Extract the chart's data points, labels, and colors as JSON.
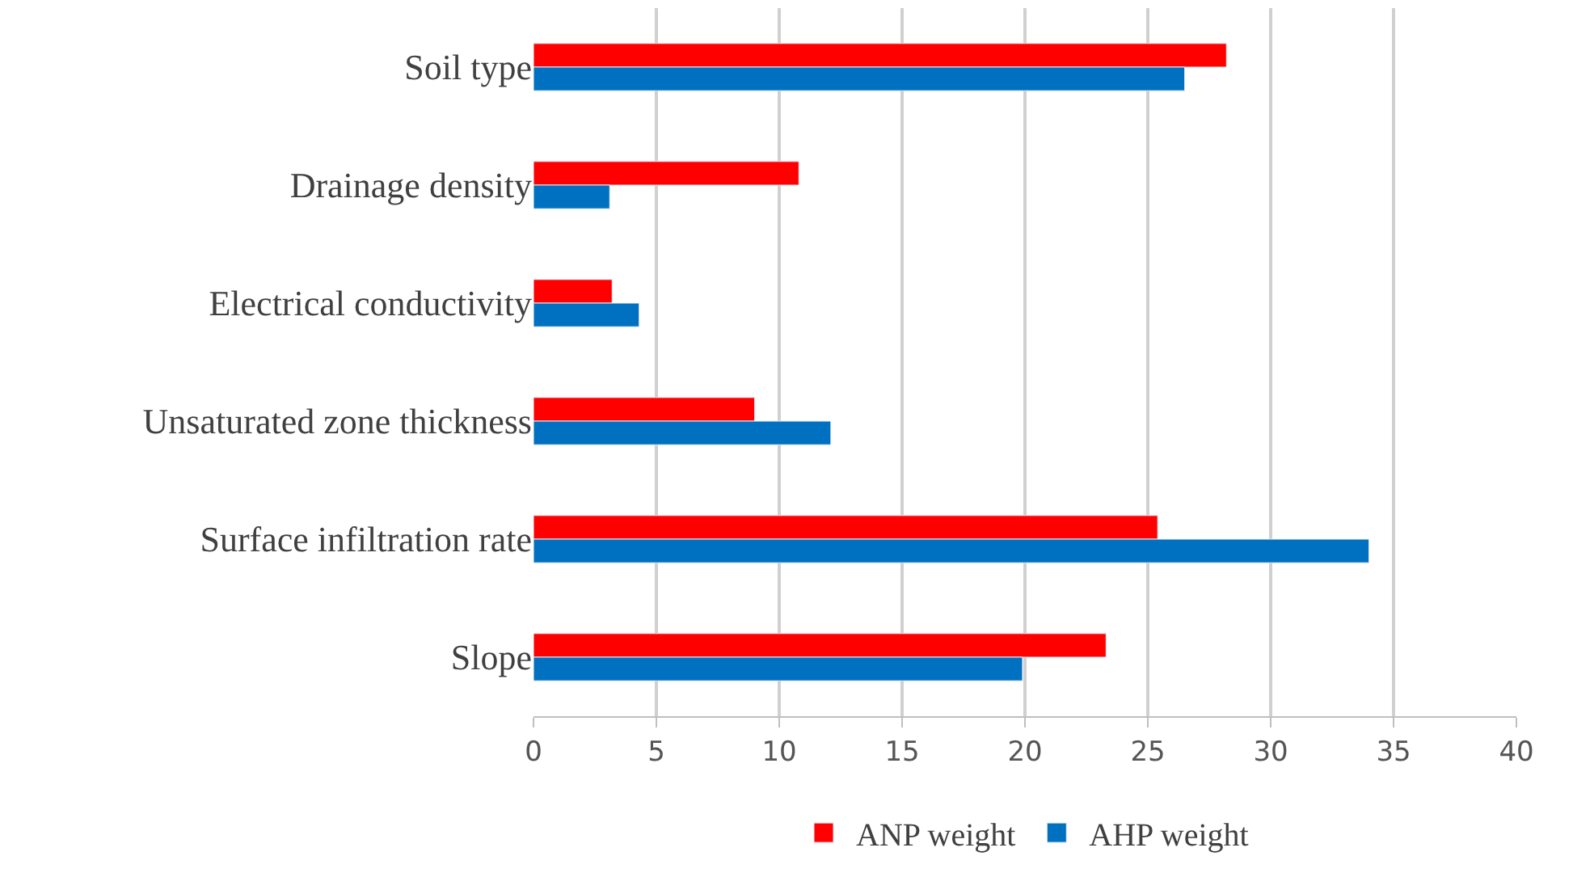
{
  "chart_data": {
    "type": "bar",
    "orientation": "horizontal",
    "categories": [
      "Soil type",
      "Drainage density",
      "Electrical conductivity",
      "Unsaturated zone thickness",
      "Surface infiltration rate",
      "Slope"
    ],
    "series": [
      {
        "name": "ANP weight",
        "color": "#ff0000",
        "values": [
          28.2,
          10.8,
          3.2,
          9.0,
          25.4,
          23.3
        ]
      },
      {
        "name": "AHP weight",
        "color": "#0070c0",
        "values": [
          26.5,
          3.1,
          4.3,
          12.1,
          34.0,
          19.9
        ]
      }
    ],
    "xlim": [
      0,
      40
    ],
    "xticks": [
      0,
      5,
      10,
      15,
      20,
      25,
      30,
      35,
      40
    ],
    "grid": "x",
    "legend": "bottom"
  }
}
